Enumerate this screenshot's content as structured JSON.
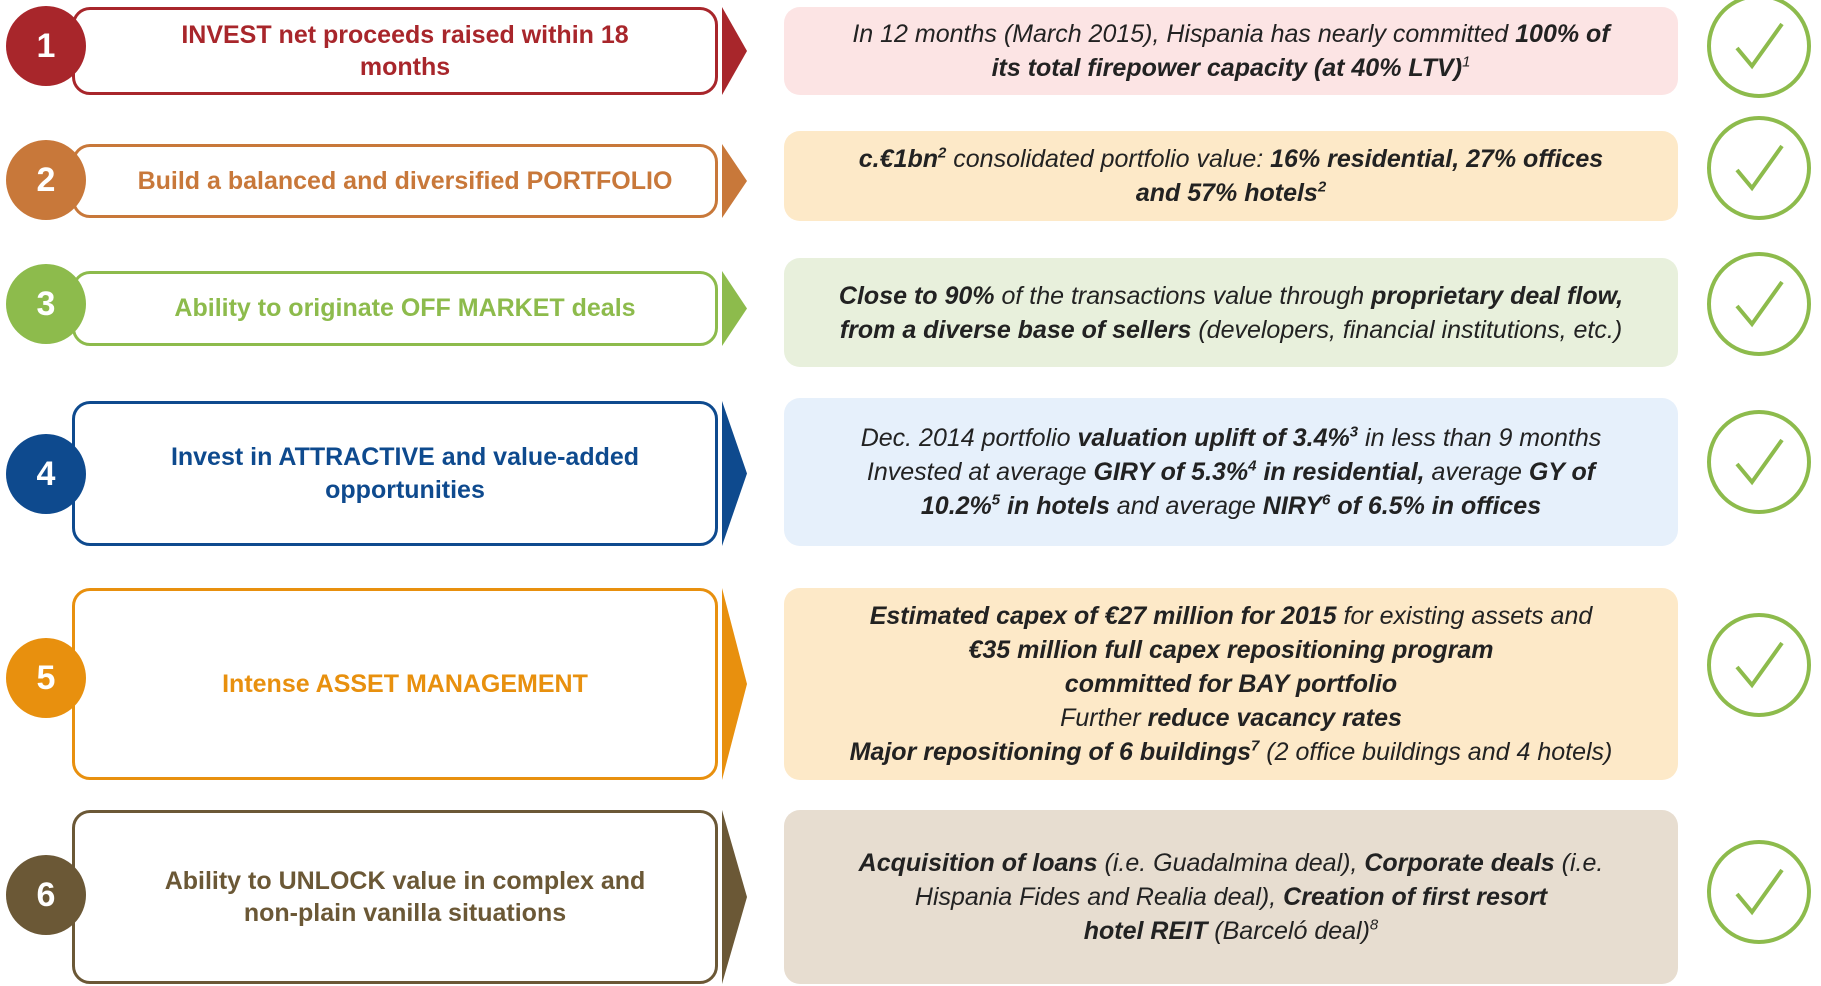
{
  "rows": [
    {
      "number": "1",
      "label": "INVEST net proceeds raised within 18 months",
      "color": "#a8262b",
      "fill": "#fce4e4",
      "detail": [
        [
          {
            "t": "In 12 months (March 2015), Hispania has nearly committed "
          },
          {
            "t": "100% of",
            "b": true
          }
        ],
        [
          {
            "t": "its total firepower capacity (at 40% LTV)",
            "b": true
          },
          {
            "t": "1",
            "sup": true
          }
        ]
      ]
    },
    {
      "number": "2",
      "label": "Build a balanced and diversified PORTFOLIO",
      "color": "#c8783a",
      "fill": "#fde9c8",
      "detail": [
        [
          {
            "t": "c.€1bn",
            "b": true
          },
          {
            "t": "2",
            "sup": true,
            "b": true
          },
          {
            "t": " consolidated portfolio value: "
          },
          {
            "t": "16% residential, 27% offices",
            "b": true
          }
        ],
        [
          {
            "t": "and 57% hotels",
            "b": true
          },
          {
            "t": "2",
            "sup": true,
            "b": true
          }
        ]
      ]
    },
    {
      "number": "3",
      "label": "Ability to originate OFF MARKET deals",
      "color": "#8dbb4c",
      "fill": "#e8f0dc",
      "detail": [
        [
          {
            "t": "Close to 90%",
            "b": true
          },
          {
            "t": " of the transactions value through "
          },
          {
            "t": "proprietary deal flow,",
            "b": true
          }
        ],
        [
          {
            "t": "from a diverse base of sellers",
            "b": true
          },
          {
            "t": " (developers, financial institutions, etc.)"
          }
        ]
      ]
    },
    {
      "number": "4",
      "label": "Invest in ATTRACTIVE and value-added opportunities",
      "color": "#0e4a8e",
      "fill": "#e6f0fb",
      "detail": [
        [
          {
            "t": "Dec. 2014 portfolio "
          },
          {
            "t": "valuation uplift of 3.4%",
            "b": true
          },
          {
            "t": "3",
            "sup": true,
            "b": true
          },
          {
            "t": " in less than 9 months"
          }
        ],
        [
          {
            "t": "Invested at average "
          },
          {
            "t": "GIRY of 5.3%",
            "b": true
          },
          {
            "t": "4",
            "sup": true,
            "b": true
          },
          {
            "t": " in residential,",
            "b": true
          },
          {
            "t": " average "
          },
          {
            "t": "GY of",
            "b": true
          }
        ],
        [
          {
            "t": "10.2%",
            "b": true
          },
          {
            "t": "5",
            "sup": true,
            "b": true
          },
          {
            "t": " in hotels",
            "b": true
          },
          {
            "t": " and average "
          },
          {
            "t": "NIRY",
            "b": true
          },
          {
            "t": "6",
            "sup": true,
            "b": true
          },
          {
            "t": " of 6.5% in offices",
            "b": true
          }
        ]
      ]
    },
    {
      "number": "5",
      "label": "Intense ASSET MANAGEMENT",
      "color": "#e8900e",
      "fill": "#fde9c8",
      "detail": [
        [
          {
            "t": "Estimated capex of €27 million for 2015",
            "b": true
          },
          {
            "t": " for existing assets and"
          }
        ],
        [
          {
            "t": "€35 million full capex repositioning program",
            "b": true
          }
        ],
        [
          {
            "t": "committed for BAY portfolio",
            "b": true
          }
        ],
        [
          {
            "t": "Further "
          },
          {
            "t": "reduce vacancy rates",
            "b": true
          }
        ],
        [
          {
            "t": "Major repositioning of 6 buildings",
            "b": true
          },
          {
            "t": "7",
            "sup": true,
            "b": true
          },
          {
            "t": " (2 office buildings and 4 hotels)"
          }
        ]
      ]
    },
    {
      "number": "6",
      "label": "Ability to UNLOCK value in complex and non-plain vanilla situations",
      "color": "#6b5836",
      "fill": "#e7ddd0",
      "detail": [
        [
          {
            "t": "Acquisition of loans",
            "b": true
          },
          {
            "t": " (i.e. Guadalmina deal), "
          },
          {
            "t": "Corporate deals",
            "b": true
          },
          {
            "t": " (i.e."
          }
        ],
        [
          {
            "t": "Hispania Fides and Realia deal), "
          },
          {
            "t": "Creation of first resort",
            "b": true
          }
        ],
        [
          {
            "t": "hotel REIT",
            "b": true
          },
          {
            "t": " (Barceló deal)"
          },
          {
            "t": "8",
            "sup": true
          }
        ]
      ]
    }
  ]
}
